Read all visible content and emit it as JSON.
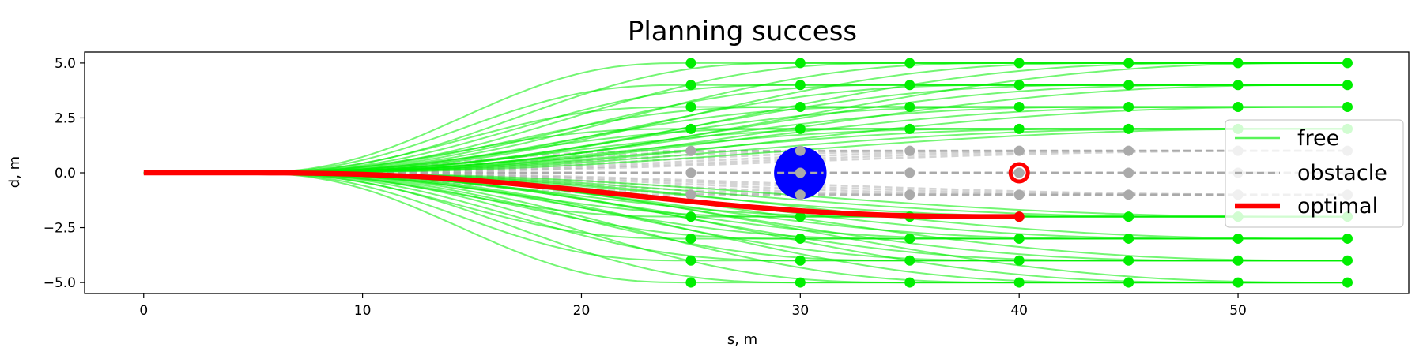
{
  "chart_data": {
    "type": "line",
    "title": "Planning success",
    "xlabel": "s, m",
    "ylabel": "d, m",
    "xlim": [
      -2.7,
      57.8
    ],
    "ylim": [
      -5.5,
      5.5
    ],
    "xticks": [
      0,
      10,
      20,
      30,
      40,
      50
    ],
    "yticks": [
      -5.0,
      -2.5,
      0.0,
      2.5,
      5.0
    ],
    "xtick_labels": [
      "0",
      "10",
      "20",
      "30",
      "40",
      "50"
    ],
    "ytick_labels": [
      "−5.0",
      "−2.5",
      "0.0",
      "2.5",
      "5.0"
    ],
    "start": {
      "s": 0,
      "d": 0
    },
    "curve_start_s": 4,
    "lateral_offsets": [
      -5,
      -4,
      -3,
      -2,
      -1,
      0,
      1,
      2,
      3,
      4,
      5
    ],
    "targets_s": [
      25,
      30,
      35,
      40,
      45,
      50,
      55
    ],
    "obstacles": [
      {
        "s": 30,
        "d": 0,
        "radius": 1.2,
        "color": "#0000ff"
      },
      {
        "s": 40,
        "d": 0,
        "radius": 0.45,
        "color": "#ff0000"
      }
    ],
    "optimal": {
      "s_end": 40,
      "d_end": -2
    },
    "series": [
      {
        "name": "free",
        "color": "#00ee00",
        "style": "solid"
      },
      {
        "name": "obstacle",
        "color": "#aaaaaa",
        "style": "dashed"
      },
      {
        "name": "optimal",
        "color": "#ff0000",
        "style": "solid"
      }
    ],
    "legend_position": "right",
    "grid": false
  }
}
